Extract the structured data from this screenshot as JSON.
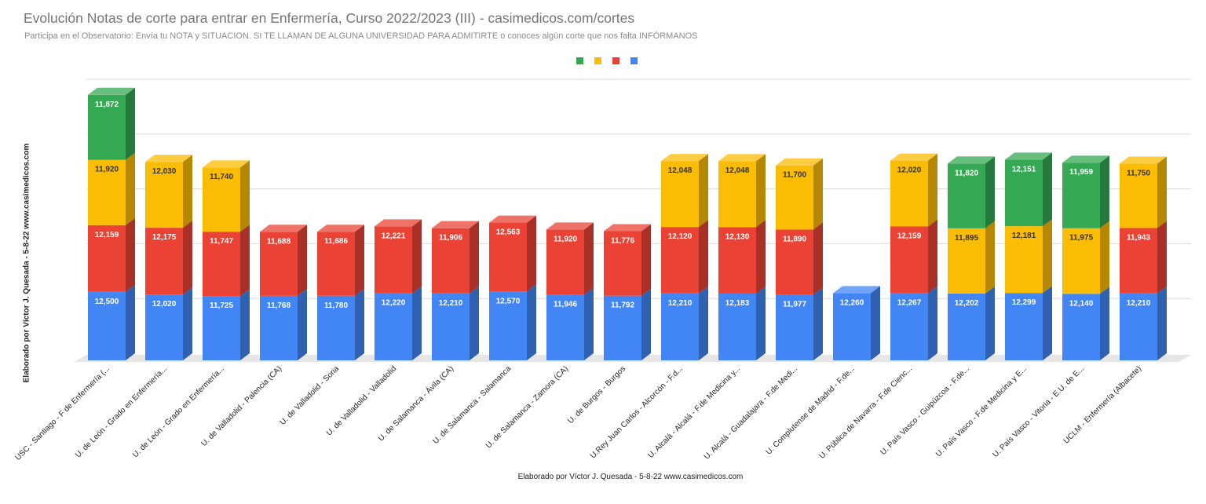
{
  "title": "Evolución Notas de corte para entrar en Enfermería, Curso 2022/2023 (III) - casimedicos.com/cortes",
  "subtitle": "Participa en el Observatorio: Envía tu NOTA y SITUACION. SI TE LLAMAN DE ALGUNA UNIVERSIDAD PARA ADMITIRTE o conoces algún corte que nos falta INFÓRMANOS",
  "chart_data": {
    "type": "bar",
    "stacked": true,
    "three_d": true,
    "title": "Evolución Notas de corte para entrar en Enfermería, Curso 2022/2023 (III) - casimedicos.com/cortes",
    "subtitle": "Participa en el Observatorio: Envía tu NOTA y SITUACION. SI TE LLAMAN DE ALGUNA UNIVERSIDAD PARA ADMITIRTE o conoces algún corte que nos falta INFÓRMANOS",
    "xlabel": "Elaborado por Víctor J. Quesada - 5-8-22  www.casimedicos.com",
    "ylabel": "Elaborado por Víctor J. Quesada - 5-8-22  www.casimedicos.com",
    "ylim": [
      0,
      50
    ],
    "grid": true,
    "legend_position": "top",
    "categories": [
      "USC - Santiago - F de Enfermería (...",
      "U. de León - Grado en Enfermería...",
      "U. de León - Grado en Enfermería...",
      "U. de Valladolid - Palencia (CA)",
      "U. de Valladolid - Soria",
      "U. de Valladolid - Valladolid",
      "U. de Salamanca - Ávila (CA)",
      "U. de Salamanca - Salamanca",
      "U. de Salamanca - Zamora (CA)",
      "U. de Burgos - Burgos",
      "U.Rey Juan Carlos - Alcorcón - F.d...",
      "U. Alcalá - Alcalá - F.de Medicina y...",
      "U. Alcalá - Guadalajara - F.de Medi...",
      "U. Complutense de Madrid - F.de...",
      "U. Pública de Navarra - F.de Cienc...",
      "U. País Vasco - Guipúzcoa - F.de...",
      "U. País Vasco - F.de Medicina y E...",
      "U. País Vasco - Vitoria - E.U. de E...",
      "UCLM - Enfermería (Albacete)"
    ],
    "series": [
      {
        "color": "#4285f4",
        "values": [
          12.5,
          12.02,
          11.725,
          11.768,
          11.78,
          12.22,
          12.21,
          12.57,
          11.946,
          11.792,
          12.21,
          12.183,
          11.977,
          12.26,
          12.267,
          12.202,
          12.299,
          12.14,
          12.21
        ],
        "labels": [
          "12,500",
          "12,020",
          "11,725",
          "11,768",
          "11,780",
          "12,220",
          "12,210",
          "12,570",
          "11,946",
          "11,792",
          "12,210",
          "12,183",
          "11,977",
          "12,260",
          "12,267",
          "12,202",
          "12,299",
          "12,140",
          "12,210"
        ]
      },
      {
        "color": "#ea4335",
        "values": [
          12.159,
          12.175,
          11.747,
          11.688,
          11.686,
          12.221,
          11.906,
          12.563,
          11.92,
          11.776,
          12.12,
          12.13,
          11.89,
          null,
          12.159,
          null,
          null,
          null,
          11.943
        ],
        "labels": [
          "12,159",
          "12,175",
          "11,747",
          "11,688",
          "11,686",
          "12,221",
          "11,906",
          "12,563",
          "11,920",
          "11,776",
          "12,120",
          "12,130",
          "11,890",
          null,
          "12,159",
          null,
          null,
          null,
          "11,943"
        ]
      },
      {
        "color": "#fbbc04",
        "values": [
          11.92,
          12.03,
          11.74,
          null,
          null,
          null,
          null,
          null,
          null,
          null,
          12.048,
          12.048,
          11.7,
          null,
          12.02,
          11.895,
          12.181,
          11.975,
          11.75
        ],
        "labels": [
          "11,920",
          "12,030",
          "11,740",
          null,
          null,
          null,
          null,
          null,
          null,
          null,
          "12,048",
          "12,048",
          "11,700",
          null,
          "12,020",
          "11,895",
          "12,181",
          "11,975",
          "11,750"
        ]
      },
      {
        "color": "#34a853",
        "values": [
          11.872,
          null,
          null,
          null,
          null,
          null,
          null,
          null,
          null,
          null,
          null,
          null,
          null,
          null,
          null,
          11.82,
          12.151,
          11.959,
          null
        ],
        "labels": [
          "11,872",
          null,
          null,
          null,
          null,
          null,
          null,
          null,
          null,
          null,
          null,
          null,
          null,
          null,
          null,
          "11,820",
          "12,151",
          "11,959",
          null
        ]
      }
    ]
  }
}
